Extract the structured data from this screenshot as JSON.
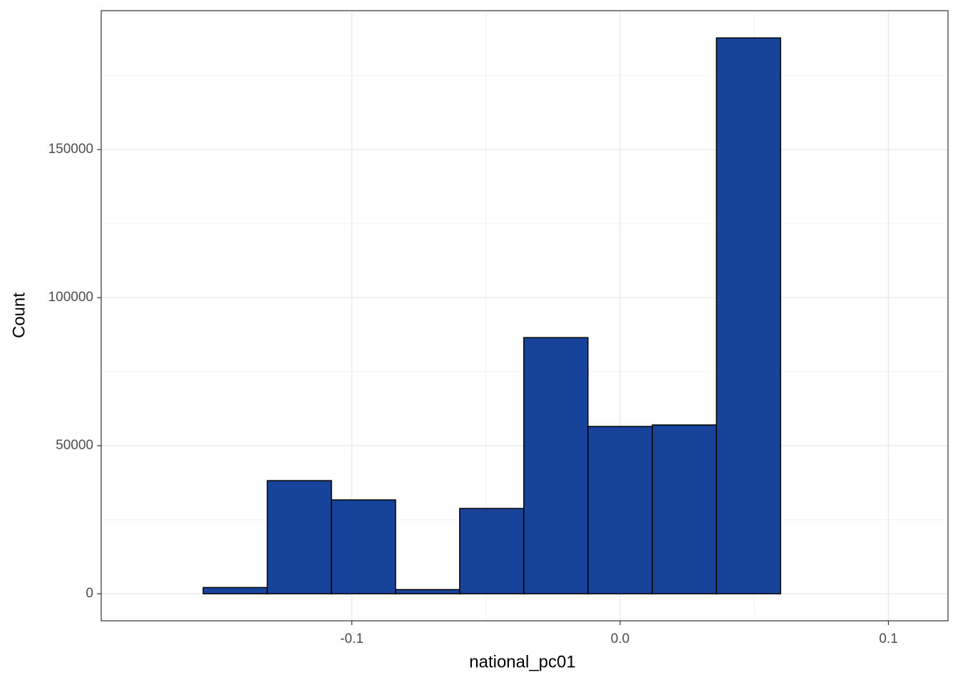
{
  "chart_data": {
    "type": "histogram",
    "x_label": "national_pc01",
    "y_label": "Count",
    "bins": [
      -0.1793,
      -0.1554,
      -0.1315,
      -0.1076,
      -0.0837,
      -0.0598,
      -0.0359,
      -0.012,
      0.012,
      0.0359,
      0.0598,
      0.0837,
      0.1076
    ],
    "values": [
      0,
      2100,
      38200,
      31700,
      1400,
      28800,
      86500,
      56500,
      57000,
      187700,
      0,
      0
    ],
    "color": "#17449a",
    "xlim": [
      -0.1934,
      0.1222
    ],
    "ylim": [
      -9130,
      196900
    ],
    "xticks": [
      -0.1,
      {
        "value": 0,
        "label": "0.0"
      },
      0.1
    ],
    "yticks": [
      0,
      50000,
      100000,
      150000
    ],
    "grid": true
  }
}
